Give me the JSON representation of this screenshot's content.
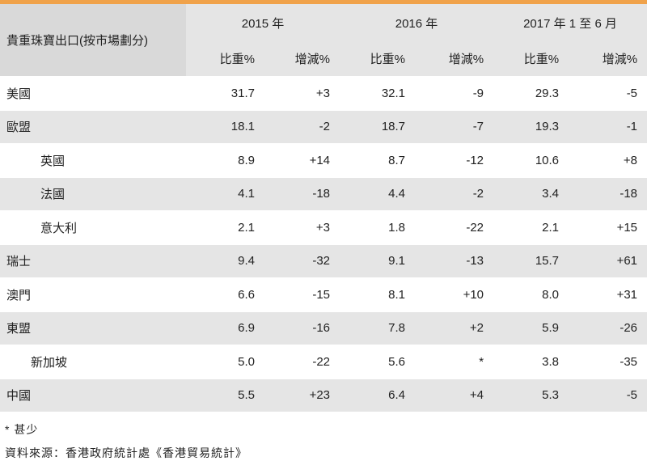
{
  "table": {
    "title": "貴重珠寶出口(按市場劃分)",
    "years": [
      "2015 年",
      "2016 年",
      "2017 年 1 至 6 月"
    ],
    "subcols": [
      "比重%",
      "增減%"
    ],
    "rows": [
      {
        "label": "美國",
        "v": [
          "31.7",
          "+3",
          "32.1",
          "-9",
          "29.3",
          "-5"
        ]
      },
      {
        "label": "歐盟",
        "v": [
          "18.1",
          "-2",
          "18.7",
          "-7",
          "19.3",
          "-1"
        ]
      },
      {
        "label": "英國",
        "v": [
          "8.9",
          "+14",
          "8.7",
          "-12",
          "10.6",
          "+8"
        ]
      },
      {
        "label": "法國",
        "v": [
          "4.1",
          "-18",
          "4.4",
          "-2",
          "3.4",
          "-18"
        ]
      },
      {
        "label": "意大利",
        "v": [
          "2.1",
          "+3",
          "1.8",
          "-22",
          "2.1",
          "+15"
        ]
      },
      {
        "label": "瑞士",
        "v": [
          "9.4",
          "-32",
          "9.1",
          "-13",
          "15.7",
          "+61"
        ]
      },
      {
        "label": "澳門",
        "v": [
          "6.6",
          "-15",
          "8.1",
          "+10",
          "8.0",
          "+31"
        ]
      },
      {
        "label": "東盟",
        "v": [
          "6.9",
          "-16",
          "7.8",
          "+2",
          "5.9",
          "-26"
        ]
      },
      {
        "label": "新加坡",
        "v": [
          "5.0",
          "-22",
          "5.6",
          "*",
          "3.8",
          "-35"
        ]
      },
      {
        "label": "中國",
        "v": [
          "5.5",
          "+23",
          "6.4",
          "+4",
          "5.3",
          "-5"
        ]
      }
    ]
  },
  "notes": {
    "footnote": "*  甚少",
    "source": "資料來源：香港政府統計處《香港貿易統計》"
  },
  "colors": {
    "accent": "#f0a24a",
    "header_bg": "#e5e5e5",
    "alt_row": "#e5e5e5"
  }
}
